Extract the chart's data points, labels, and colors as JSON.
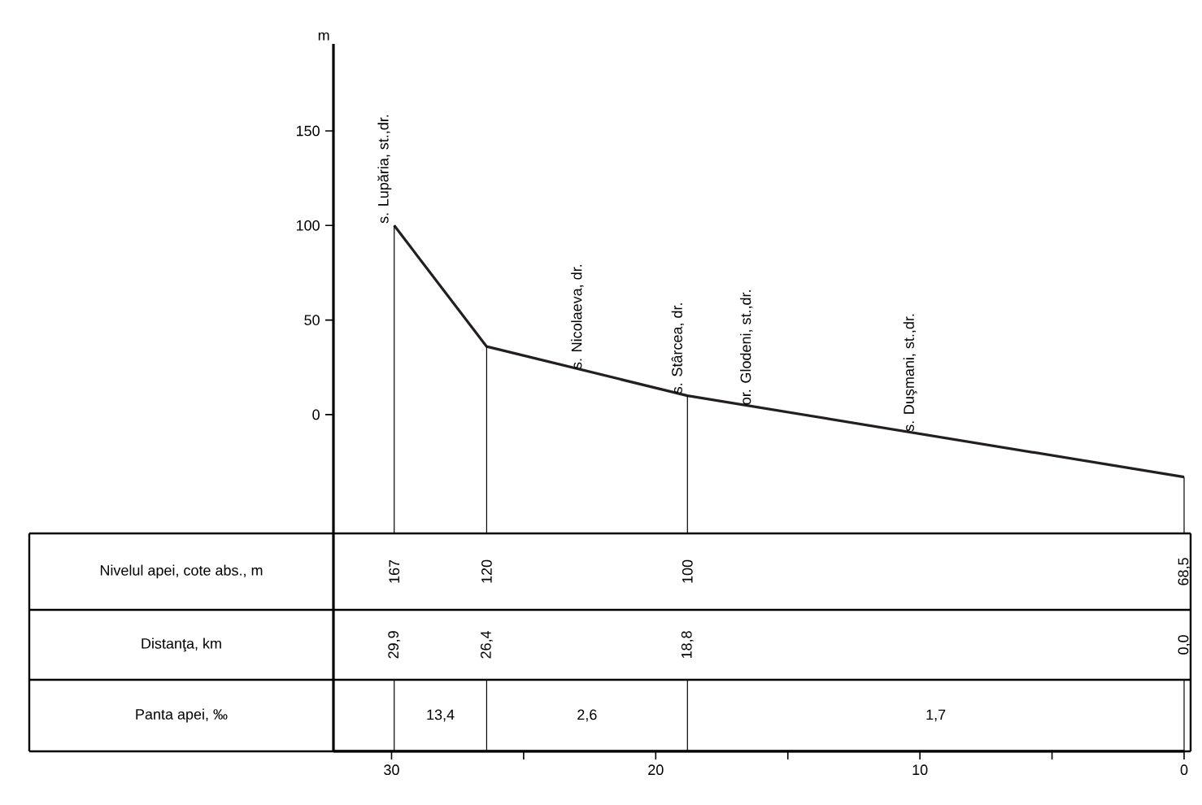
{
  "chart_data": {
    "type": "line",
    "ylabel": "m",
    "x": [
      29.9,
      26.4,
      18.8,
      0
    ],
    "values": [
      100,
      36,
      10,
      -33
    ],
    "ref_lines": [
      {
        "axis": "x",
        "value": 29.9
      },
      {
        "axis": "x",
        "value": 26.4
      },
      {
        "axis": "x",
        "value": 18.8
      },
      {
        "axis": "x",
        "value": 0
      }
    ],
    "color": "#231f20",
    "xlim": [
      32.2,
      0
    ],
    "ylim": [
      -178,
      196
    ],
    "xticks": [
      30,
      {
        "value": 25,
        "label": null
      },
      20,
      {
        "value": 15,
        "label": null
      },
      10,
      {
        "value": 5,
        "label": null
      },
      0
    ],
    "yticks": [
      0,
      50,
      100,
      150
    ],
    "annotations": [
      {
        "text": "s. Lupăria, st.,dr.",
        "x": 29.9,
        "y": 100
      },
      {
        "text": "s. Nicolaeva, dr.",
        "x": 22.6,
        "y": 23
      },
      {
        "text": "s. Stârcea, dr.",
        "x": 18.8,
        "y": 10
      },
      {
        "text": "or. Glodeni, st.,dr.",
        "x": 16.2,
        "y": 4
      },
      {
        "text": "s. Duşmani, st.,dr.",
        "x": 10.0,
        "y": -10
      },
      "Nivelul apei, cote abs., m",
      "Distanţa, km",
      "Panta apei, ‰",
      "167",
      "120",
      "100",
      "68,5",
      "29,9",
      "26,4",
      "18,8",
      "0,0",
      "13,4",
      "2,6",
      "1,7"
    ]
  }
}
